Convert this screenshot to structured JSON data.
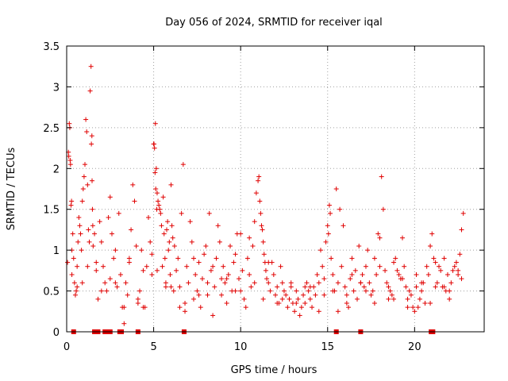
{
  "chart_data": {
    "type": "scatter",
    "title": "Day 056 of 2024, SRMTID for receiver iqal",
    "xlabel": "GPS time / hours",
    "ylabel": "SRMTID / TECUs",
    "xlim": [
      0,
      24
    ],
    "ylim": [
      0,
      3.5
    ],
    "xticks": [
      0,
      5,
      10,
      15,
      20
    ],
    "xtick_labels": [
      "0",
      "5",
      "10",
      "15",
      "20"
    ],
    "yticks": [
      0,
      0.5,
      1,
      1.5,
      2,
      2.5,
      3,
      3.5
    ],
    "ytick_labels": [
      "0",
      "0.5",
      "1",
      "1.5",
      "2",
      "2.5",
      "3",
      "3.5"
    ],
    "grid": true,
    "marker": "plus",
    "color": "#e00000",
    "series": [
      {
        "name": "SRMTID",
        "x": [
          0.05,
          0.1,
          0.15,
          0.2,
          0.25,
          0.3,
          0.35,
          0.4,
          0.45,
          0.5,
          0.55,
          0.6,
          0.65,
          0.7,
          0.75,
          0.8,
          0.85,
          0.9,
          0.95,
          1.0,
          1.05,
          1.1,
          1.15,
          1.2,
          1.25,
          1.3,
          1.35,
          1.4,
          1.45,
          1.5,
          0.12,
          0.18,
          0.22,
          0.28,
          1.42,
          1.46,
          1.48,
          1.52,
          1.6,
          1.7,
          1.8,
          1.9,
          2.0,
          2.1,
          2.2,
          2.3,
          2.4,
          2.5,
          2.6,
          2.7,
          2.8,
          2.9,
          3.0,
          3.1,
          3.2,
          3.3,
          3.4,
          3.5,
          3.6,
          3.7,
          3.8,
          3.9,
          4.0,
          4.1,
          4.2,
          4.3,
          4.4,
          4.5,
          4.6,
          4.7,
          4.8,
          4.9,
          5.0,
          5.05,
          5.1,
          5.15,
          5.2,
          5.25,
          5.3,
          5.35,
          5.4,
          5.45,
          5.5,
          5.55,
          5.6,
          5.65,
          5.7,
          5.75,
          5.8,
          5.85,
          5.9,
          5.95,
          6.0,
          6.05,
          6.1,
          6.15,
          6.2,
          5.02,
          5.08,
          5.12,
          5.18,
          6.3,
          6.4,
          6.5,
          6.6,
          6.7,
          6.8,
          6.9,
          7.0,
          7.1,
          7.2,
          7.3,
          7.4,
          7.5,
          7.6,
          7.7,
          7.8,
          7.9,
          8.0,
          8.1,
          8.2,
          8.3,
          8.4,
          8.5,
          8.6,
          8.7,
          8.8,
          8.9,
          9.0,
          9.1,
          9.2,
          9.3,
          9.4,
          9.5,
          9.6,
          9.7,
          9.8,
          9.9,
          10.0,
          10.1,
          10.2,
          10.3,
          10.4,
          10.5,
          10.6,
          10.7,
          10.8,
          10.9,
          11.0,
          11.05,
          11.1,
          11.15,
          11.2,
          11.25,
          11.3,
          11.35,
          11.4,
          11.45,
          11.5,
          11.6,
          11.7,
          11.8,
          11.9,
          12.0,
          12.1,
          12.2,
          12.3,
          12.4,
          12.5,
          12.6,
          12.7,
          12.8,
          12.9,
          13.0,
          13.1,
          13.2,
          13.3,
          13.4,
          13.5,
          13.6,
          13.7,
          13.8,
          13.9,
          14.0,
          14.1,
          14.2,
          14.3,
          14.4,
          14.5,
          14.6,
          14.7,
          14.8,
          14.9,
          15.0,
          15.05,
          15.1,
          15.15,
          15.2,
          15.3,
          15.4,
          15.5,
          15.6,
          15.7,
          15.8,
          15.9,
          16.0,
          16.1,
          16.2,
          16.3,
          16.4,
          16.5,
          16.6,
          16.7,
          16.8,
          16.9,
          17.0,
          17.1,
          17.2,
          17.3,
          17.4,
          17.5,
          17.6,
          17.7,
          17.8,
          17.9,
          18.0,
          18.1,
          18.2,
          18.3,
          18.4,
          18.5,
          18.6,
          18.7,
          18.8,
          18.9,
          19.0,
          19.1,
          19.2,
          19.3,
          19.4,
          19.5,
          19.6,
          19.7,
          19.8,
          19.9,
          20.0,
          20.1,
          20.2,
          20.3,
          20.4,
          20.5,
          20.6,
          20.7,
          20.8,
          20.9,
          21.0,
          21.1,
          21.2,
          21.3,
          21.4,
          21.5,
          21.6,
          21.7,
          21.8,
          21.9,
          22.0,
          22.1,
          22.2,
          22.3,
          22.4,
          22.5,
          22.6,
          22.7,
          22.8,
          0.3,
          0.9,
          1.7,
          2.5,
          3.3,
          4.1,
          4.9,
          5.7,
          6.5,
          7.3,
          8.1,
          8.9,
          9.7,
          10.5,
          11.3,
          12.1,
          12.9,
          13.7,
          14.5,
          15.3,
          16.1,
          16.9,
          17.7,
          18.5,
          19.3,
          20.1,
          20.9,
          21.7,
          22.5,
          0.6,
          1.2,
          2.0,
          2.8,
          3.6,
          4.4,
          5.2,
          6.0,
          6.8,
          7.6,
          8.4,
          9.2,
          10.0,
          10.8,
          11.6,
          12.4,
          13.2,
          14.0,
          14.8,
          15.6,
          16.4,
          17.2,
          18.0,
          18.8,
          19.6,
          20.4,
          21.2,
          22.0,
          22.7,
          0.4,
          0.7,
          1.1,
          1.3,
          1.9,
          2.6,
          3.4,
          3.9,
          4.6,
          5.3,
          5.8,
          6.4,
          7.1,
          7.7,
          8.3,
          8.8,
          9.4,
          9.9,
          10.4,
          11.2,
          11.8,
          12.6,
          13.3,
          13.9,
          14.6,
          15.4,
          16.2,
          16.8,
          17.5,
          18.2,
          18.9,
          19.5,
          20.2,
          20.8,
          21.4,
          22.1,
          22.6
        ],
        "y": [
          0.85,
          2.2,
          2.55,
          2.1,
          1.55,
          0.7,
          1.2,
          0.9,
          0.6,
          0.45,
          0.5,
          0.8,
          1.1,
          1.4,
          1.3,
          1.2,
          1.0,
          1.6,
          1.75,
          1.9,
          2.05,
          2.6,
          2.45,
          1.8,
          1.25,
          1.1,
          2.95,
          3.25,
          2.4,
          1.3,
          2.15,
          2.5,
          2.05,
          1.6,
          2.3,
          1.85,
          1.5,
          1.05,
          1.2,
          0.75,
          0.4,
          1.35,
          1.1,
          0.8,
          0.6,
          0.5,
          1.4,
          1.65,
          1.2,
          0.9,
          1.0,
          0.55,
          1.45,
          0.7,
          0.3,
          0.1,
          0.6,
          0.45,
          0.9,
          1.25,
          1.8,
          1.6,
          1.05,
          0.35,
          0.5,
          1.0,
          0.75,
          0.3,
          0.8,
          1.4,
          1.1,
          0.95,
          2.3,
          2.25,
          2.55,
          2.0,
          1.7,
          1.6,
          1.55,
          1.5,
          1.45,
          1.3,
          0.8,
          1.65,
          1.2,
          0.9,
          0.6,
          1.25,
          1.35,
          1.0,
          1.1,
          0.7,
          1.8,
          1.3,
          1.15,
          0.5,
          1.05,
          2.3,
          1.95,
          1.75,
          1.5,
          0.75,
          0.9,
          0.55,
          1.45,
          2.05,
          0.25,
          0.8,
          0.6,
          1.35,
          1.1,
          0.4,
          0.7,
          0.5,
          0.85,
          0.3,
          0.65,
          0.95,
          1.05,
          0.6,
          1.45,
          0.75,
          0.2,
          0.55,
          0.9,
          1.3,
          1.1,
          0.45,
          0.8,
          0.6,
          0.35,
          0.7,
          1.05,
          0.5,
          0.85,
          0.95,
          1.2,
          0.65,
          1.2,
          0.75,
          0.4,
          0.3,
          0.9,
          1.15,
          0.55,
          1.05,
          1.35,
          1.7,
          1.85,
          1.9,
          1.6,
          1.45,
          1.3,
          1.25,
          1.1,
          0.95,
          0.85,
          0.75,
          0.65,
          0.6,
          0.5,
          0.85,
          0.7,
          0.45,
          0.55,
          0.35,
          0.8,
          0.6,
          0.5,
          0.45,
          0.3,
          0.4,
          0.55,
          0.35,
          0.25,
          0.5,
          0.4,
          0.2,
          0.3,
          0.45,
          0.35,
          0.6,
          0.5,
          0.4,
          0.3,
          0.55,
          0.45,
          0.7,
          0.6,
          1.0,
          0.8,
          0.65,
          1.1,
          1.3,
          1.2,
          1.55,
          1.45,
          0.9,
          0.7,
          0.5,
          1.75,
          0.6,
          1.5,
          0.8,
          1.3,
          0.55,
          0.35,
          0.3,
          0.65,
          0.9,
          0.5,
          0.75,
          0.4,
          1.05,
          0.6,
          0.7,
          0.55,
          0.8,
          1.0,
          0.6,
          0.45,
          0.5,
          0.9,
          0.7,
          1.2,
          1.15,
          1.9,
          1.5,
          0.75,
          0.6,
          0.55,
          0.5,
          0.45,
          0.85,
          0.9,
          0.75,
          0.7,
          0.65,
          1.15,
          0.8,
          0.55,
          0.4,
          0.5,
          0.45,
          0.3,
          0.25,
          0.55,
          0.3,
          0.4,
          0.5,
          0.6,
          0.35,
          0.8,
          0.7,
          1.05,
          1.2,
          0.9,
          0.85,
          0.6,
          0.8,
          0.75,
          0.55,
          0.9,
          0.5,
          0.7,
          0.4,
          0.6,
          0.75,
          0.8,
          0.85,
          0.7,
          0.95,
          1.25,
          1.45,
          1.0,
          0.6,
          0.85,
          0.65,
          0.3,
          0.4,
          0.7,
          0.55,
          0.3,
          0.9,
          0.45,
          0.65,
          0.5,
          0.7,
          0.4,
          0.35,
          0.6,
          0.55,
          0.25,
          0.5,
          0.45,
          0.6,
          0.35,
          0.4,
          0.65,
          0.7,
          0.35,
          0.55,
          0.75,
          0.55,
          0.8,
          0.5,
          0.6,
          0.85,
          0.3,
          0.75,
          0.55,
          0.35,
          0.45,
          0.8,
          0.65,
          0.5,
          0.6,
          0.85,
          0.4,
          0.35,
          0.55,
          0.45,
          0.25,
          0.7,
          0.5,
          0.8,
          0.4,
          0.3,
          0.6,
          0.55,
          0.5,
          0.65,
          0.0,
          0.0,
          0.0,
          0.0,
          0.0,
          0.0,
          0.0,
          0.0,
          0.0,
          0.0,
          0.0,
          0.0,
          0.0,
          0.0,
          0.0,
          0.0,
          0.0,
          0.0,
          0.0,
          0.0,
          0.0,
          0.0,
          0.0,
          0.0,
          0.0,
          0.0,
          0.0,
          0.0,
          0.0,
          0.0,
          0.0,
          0.0,
          0.0,
          0.0,
          0.0,
          0.0,
          0.0
        ]
      }
    ],
    "zero_markers_x": [
      0.4,
      1.6,
      1.8,
      2.2,
      2.35,
      2.5,
      3.05,
      3.15,
      4.1,
      6.75,
      15.5,
      16.9,
      20.95,
      21.05
    ]
  }
}
